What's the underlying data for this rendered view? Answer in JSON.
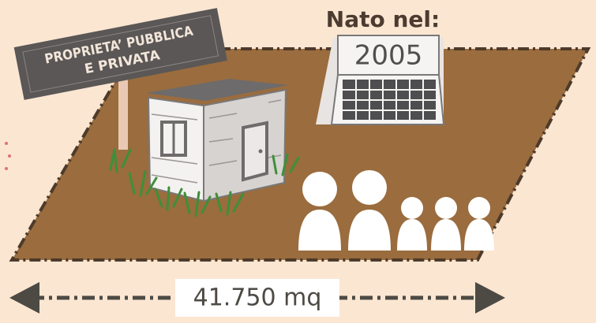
{
  "sign": {
    "lines": [
      "PROPRIETA’ PUBBLICA",
      "E PRIVATA"
    ]
  },
  "calendar": {
    "label": "Nato nel:",
    "year": "2005"
  },
  "area": {
    "label": "41.750 mq"
  }
}
